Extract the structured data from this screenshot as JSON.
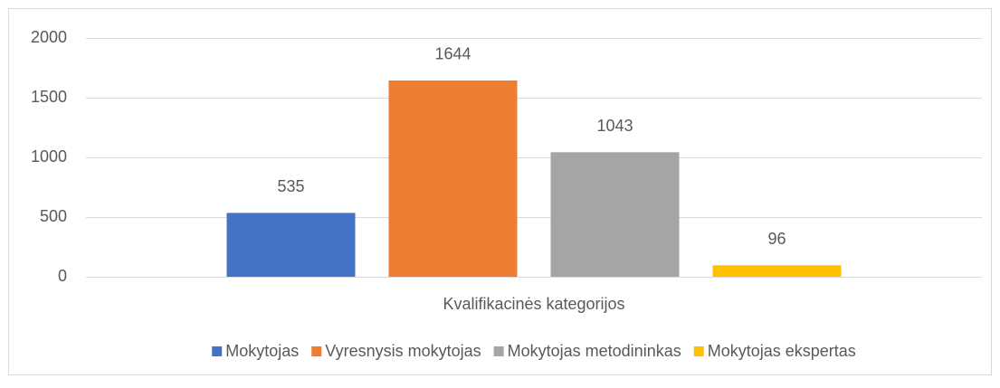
{
  "chart_data": {
    "type": "bar",
    "categories": [
      "Kvalifikacinės kategorijos"
    ],
    "series": [
      {
        "name": "Mokytojas",
        "color": "#4472c4",
        "values": [
          535
        ]
      },
      {
        "name": "Vyresnysis mokytojas",
        "color": "#ed7d31",
        "values": [
          1644
        ]
      },
      {
        "name": "Mokytojas metodininkas",
        "color": "#a5a5a5",
        "values": [
          1043
        ]
      },
      {
        "name": "Mokytojas ekspertas",
        "color": "#ffc000",
        "values": [
          96
        ]
      }
    ],
    "ylim": [
      0,
      2000
    ],
    "yticks": [
      0,
      500,
      1000,
      1500,
      2000
    ],
    "grid": true,
    "legend": "bottom"
  }
}
